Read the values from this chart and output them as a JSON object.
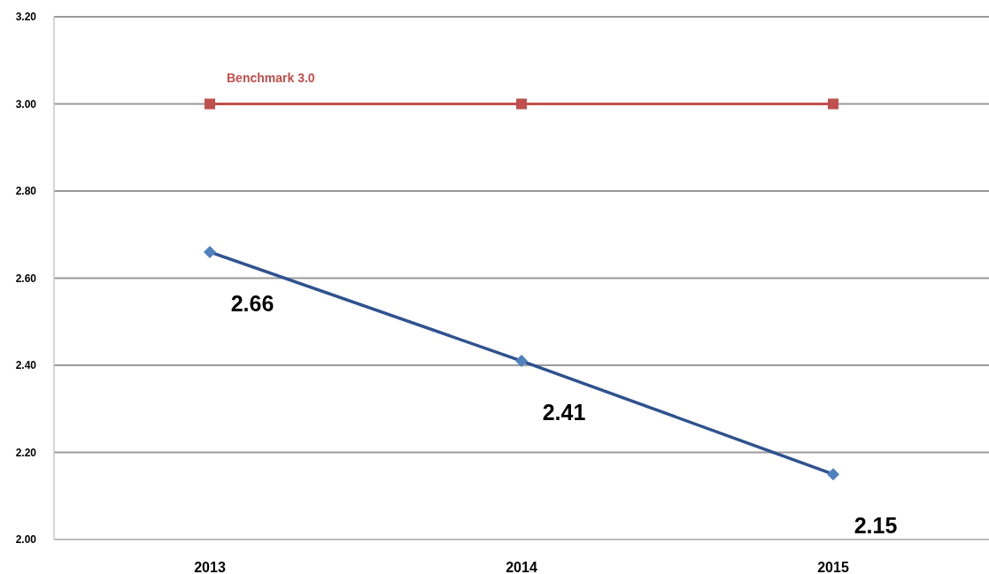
{
  "chart_data": {
    "type": "line",
    "categories": [
      "2013",
      "2014",
      "2015"
    ],
    "series": [
      {
        "name": "Benchmark 3.0",
        "color": "#c0504d",
        "values": [
          3,
          3,
          3
        ],
        "marker": "square"
      },
      {
        "color": "#2f528f",
        "colors": [
          "#4f81bd",
          "#4f81bd",
          "#4f81bd"
        ],
        "values": [
          2.66,
          2.41,
          2.15
        ],
        "marker": "diamond",
        "value_labels": [
          "2.66",
          "2.41",
          "2.15"
        ]
      }
    ],
    "ylim": [
      2,
      3.2
    ],
    "yticks": [
      {
        "value": 2,
        "label": "2.00"
      },
      {
        "value": 2.2,
        "label": "2.20"
      },
      {
        "value": 2.4,
        "label": "2.40"
      },
      {
        "value": 2.6,
        "label": "2.60"
      },
      {
        "value": 2.8,
        "label": "2.80"
      },
      {
        "value": 3,
        "label": "3.00"
      },
      {
        "value": 3.2,
        "label": "3.20"
      }
    ],
    "grid": "y"
  }
}
